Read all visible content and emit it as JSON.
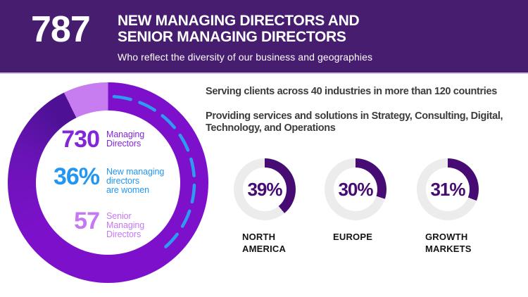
{
  "header": {
    "number": "787",
    "title": "NEW MANAGING DIRECTORS AND\nSENIOR MANAGING DIRECTORS",
    "subtitle": "Who reflect the diversity of our business and geographies"
  },
  "main_donut": {
    "managing_directors": 730,
    "senior_managing_directors": 57,
    "women_new_md_pct": 36,
    "stats": [
      {
        "value": "730",
        "label": "Managing\nDirectors",
        "color": "#8226DA"
      },
      {
        "value": "36%",
        "label": "New managing\ndirectors\nare women",
        "color": "#2196F3"
      },
      {
        "value": "57",
        "label": "Senior\nManaging\nDirectors",
        "color": "#C678F2"
      }
    ]
  },
  "facts": {
    "line1": "Serving clients across 40 industries in more than 120 countries",
    "line2": "Providing services and solutions in Strategy, Consulting, Digital,\nTechnology, and Operations"
  },
  "regions": [
    {
      "pct": 39,
      "pct_label": "39%",
      "label": "NORTH\nAMERICA"
    },
    {
      "pct": 30,
      "pct_label": "30%",
      "label": "EUROPE"
    },
    {
      "pct": 31,
      "pct_label": "31%",
      "label": "GROWTH\nMARKETS"
    }
  ],
  "colors": {
    "banner_bg": "#471D70",
    "ring_purple": "#7D11CB",
    "ring_purple_mid": "#6913B6",
    "ring_purple_dark": "#4E1195",
    "ring_light_purple": "#C77CF0",
    "dash_blue": "#2D9BF0",
    "region_arc": "#470B74",
    "region_track": "#ECECEC",
    "facts_text": "#3C3C3C",
    "region_label": "#141414",
    "banner_text": "#FFFFFF"
  },
  "chart_data": [
    {
      "type": "pie",
      "title": "787 new Managing Directors and Senior Managing Directors",
      "segments": [
        {
          "label": "Managing Directors",
          "value": 730,
          "color": "#7D11CB"
        },
        {
          "label": "Senior Managing Directors",
          "value": 57,
          "color": "#C77CF0"
        }
      ],
      "total": 787,
      "annotation": {
        "label": "New managing directors are women",
        "value_pct": 36,
        "style": "dashed blue arc from 12 o'clock clockwise"
      },
      "legend_position": "center"
    },
    {
      "type": "pie",
      "title": "Share by region (three donut gauges)",
      "categories": [
        "NORTH AMERICA",
        "EUROPE",
        "GROWTH MARKETS"
      ],
      "values": [
        39,
        30,
        31
      ],
      "arc_color": "#470B74",
      "track_color": "#ECECEC",
      "legend_position": "below"
    }
  ]
}
